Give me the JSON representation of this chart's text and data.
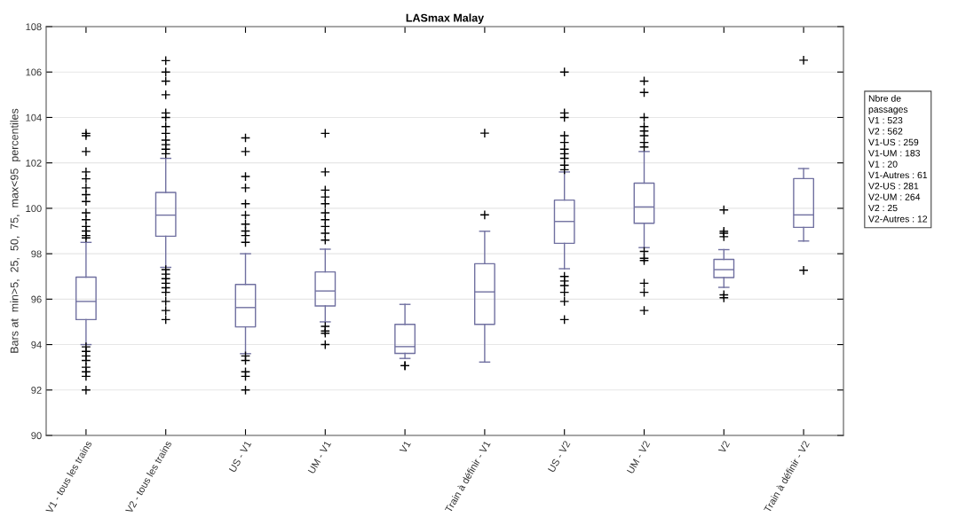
{
  "chart_data": {
    "type": "box",
    "title": "LASmax Malay",
    "ylabel": "Bars at  min>5,  25,  50,  75,  max<95  percentiles",
    "categories": [
      "V1 - tous les trains",
      "V2 - tous les trains",
      "US - V1",
      "UM - V1",
      "V1",
      "Train à définir - V1",
      "US - V2",
      "UM - V2",
      "V2",
      "Train à définir - V2"
    ],
    "color": "#7070a0",
    "boxes": [
      {
        "low": 94.0,
        "q1": 95.1,
        "median": 95.9,
        "q3": 96.97,
        "high": 98.5,
        "outliers": [
          103.3,
          103.2,
          102.5,
          101.6,
          101.3,
          100.9,
          100.6,
          100.3,
          99.8,
          99.5,
          99.2,
          99.0,
          98.8,
          98.7,
          93.9,
          93.7,
          93.5,
          93.3,
          93.0,
          92.8,
          92.6,
          92.0
        ]
      },
      {
        "low": 97.4,
        "q1": 98.77,
        "median": 99.7,
        "q3": 100.7,
        "high": 102.2,
        "outliers": [
          106.5,
          106.0,
          105.6,
          105.0,
          104.2,
          104.0,
          103.6,
          103.3,
          103.0,
          102.8,
          102.6,
          102.4,
          97.3,
          97.1,
          96.9,
          96.7,
          96.5,
          96.3,
          95.9,
          95.5,
          95.1
        ]
      },
      {
        "low": 93.6,
        "q1": 94.78,
        "median": 95.63,
        "q3": 96.65,
        "high": 98.0,
        "outliers": [
          103.1,
          102.5,
          101.4,
          100.9,
          100.2,
          99.7,
          99.3,
          99.0,
          98.8,
          98.5,
          93.5,
          93.3,
          92.8,
          92.6,
          92.0
        ]
      },
      {
        "low": 95.0,
        "q1": 95.7,
        "median": 96.36,
        "q3": 97.2,
        "high": 98.2,
        "outliers": [
          103.3,
          101.6,
          100.8,
          100.5,
          100.2,
          99.8,
          99.5,
          99.2,
          98.9,
          98.6,
          94.8,
          94.6,
          94.5,
          94.0
        ]
      },
      {
        "low": 93.39,
        "q1": 93.61,
        "median": 93.91,
        "q3": 94.89,
        "high": 95.77,
        "outliers": [
          93.07,
          93.07
        ]
      },
      {
        "low": 93.23,
        "q1": 94.89,
        "median": 96.32,
        "q3": 97.56,
        "high": 98.99,
        "outliers": [
          103.31,
          99.71
        ]
      },
      {
        "low": 97.34,
        "q1": 98.46,
        "median": 99.42,
        "q3": 100.36,
        "high": 101.6,
        "outliers": [
          106.0,
          104.2,
          104.0,
          103.2,
          102.9,
          102.6,
          102.4,
          102.2,
          101.9,
          101.7,
          97.0,
          96.8,
          96.6,
          96.3,
          95.9,
          95.1
        ]
      },
      {
        "low": 98.27,
        "q1": 99.34,
        "median": 100.06,
        "q3": 101.11,
        "high": 102.5,
        "outliers": [
          105.6,
          105.1,
          104.0,
          103.6,
          103.4,
          103.2,
          102.9,
          102.7,
          98.1,
          97.8,
          97.7,
          96.7,
          96.3,
          95.5
        ]
      },
      {
        "low": 96.52,
        "q1": 96.95,
        "median": 97.3,
        "q3": 97.75,
        "high": 98.18,
        "outliers": [
          99.93,
          98.99,
          98.9,
          98.75,
          96.19,
          96.06
        ]
      },
      {
        "low": 98.56,
        "q1": 99.16,
        "median": 99.71,
        "q3": 101.31,
        "high": 101.75,
        "outliers": [
          106.52,
          97.27
        ]
      }
    ],
    "ylim": [
      90,
      108
    ],
    "yticks": [
      90,
      92,
      94,
      96,
      98,
      100,
      102,
      104,
      106,
      108
    ],
    "grid": "y",
    "annotations": [
      "Nbre de\npassages\nV1 : 523\nV2 : 562\nV1-US : 259\nV1-UM : 183\nV1 : 20\nV1-Autres : 61\nV2-US : 281\nV2-UM : 264\nV2 : 25\nV2-Autres : 12"
    ]
  }
}
